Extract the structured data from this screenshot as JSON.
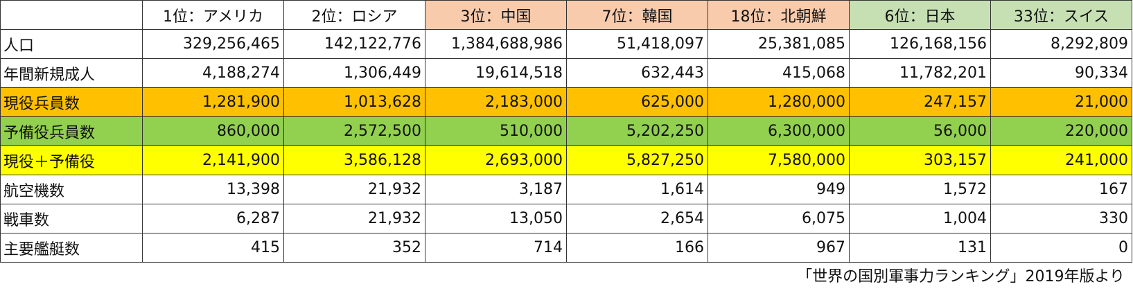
{
  "columns": [
    {
      "label": "1位：アメリカ",
      "group": "plain"
    },
    {
      "label": "2位：ロシア",
      "group": "plain"
    },
    {
      "label": "3位：中国",
      "group": "neighbor"
    },
    {
      "label": "7位：韓国",
      "group": "neighbor"
    },
    {
      "label": "18位：北朝鮮",
      "group": "neighbor"
    },
    {
      "label": "6位：日本",
      "group": "ally"
    },
    {
      "label": "33位：スイス",
      "group": "ally"
    }
  ],
  "rows": [
    {
      "label": "人口",
      "style": "",
      "values": [
        "329,256,465",
        "142,122,776",
        "1,384,688,986",
        "51,418,097",
        "25,381,085",
        "126,168,156",
        "8,292,809"
      ]
    },
    {
      "label": "年間新規成人",
      "style": "",
      "values": [
        "4,188,274",
        "1,306,449",
        "19,614,518",
        "632,443",
        "415,068",
        "11,782,201",
        "90,334"
      ]
    },
    {
      "label": "現役兵員数",
      "style": "active",
      "values": [
        "1,281,900",
        "1,013,628",
        "2,183,000",
        "625,000",
        "1,280,000",
        "247,157",
        "21,000"
      ]
    },
    {
      "label": "予備役兵員数",
      "style": "reserve",
      "values": [
        "860,000",
        "2,572,500",
        "510,000",
        "5,202,250",
        "6,300,000",
        "56,000",
        "220,000"
      ]
    },
    {
      "label": "現役＋予備役",
      "style": "total",
      "values": [
        "2,141,900",
        "3,586,128",
        "2,693,000",
        "5,827,250",
        "7,580,000",
        "303,157",
        "241,000"
      ]
    },
    {
      "label": "航空機数",
      "style": "",
      "values": [
        "13,398",
        "21,932",
        "3,187",
        "1,614",
        "949",
        "1,572",
        "167"
      ]
    },
    {
      "label": "戦車数",
      "style": "",
      "values": [
        "6,287",
        "21,932",
        "13,050",
        "2,654",
        "6,075",
        "1,004",
        "330"
      ]
    },
    {
      "label": "主要艦艇数",
      "style": "",
      "values": [
        "415",
        "352",
        "714",
        "166",
        "967",
        "131",
        "0"
      ]
    }
  ],
  "colors": {
    "neighbor_header": "#f8cbad",
    "ally_header": "#c6e0b4",
    "active_row": "#ffc000",
    "reserve_row": "#92d050",
    "total_row": "#ffff00"
  },
  "footnote": "「世界の国別軍事力ランキング」2019年版より"
}
